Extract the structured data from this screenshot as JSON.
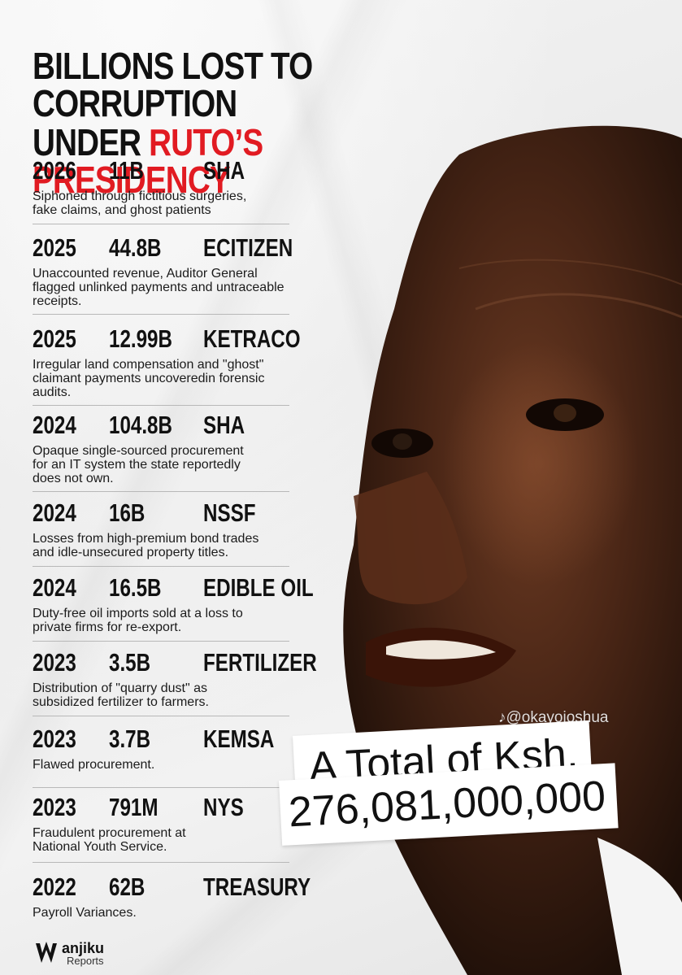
{
  "title": {
    "line1": "BILLIONS LOST TO CORRUPTION",
    "line2_prefix": "UNDER ",
    "line2_highlight": "RUTO’S PRESIDENCY"
  },
  "items": [
    {
      "year": "2026",
      "amount": "11B",
      "agency": "SHA",
      "desc1": "Siphoned through fictitious surgeries,",
      "desc2": "fake claims, and ghost patients",
      "desc3": ""
    },
    {
      "year": "2025",
      "amount": "44.8B",
      "agency": "ECITIZEN",
      "desc1": "Unaccounted revenue, Auditor General",
      "desc2": "flagged unlinked payments and untraceable",
      "desc3": "receipts."
    },
    {
      "year": "2025",
      "amount": "12.99B",
      "agency": "KETRACO",
      "desc1": "Irregular land compensation and \"ghost\"",
      "desc2": "claimant payments uncoveredin forensic",
      "desc3": "audits."
    },
    {
      "year": "2024",
      "amount": "104.8B",
      "agency": "SHA",
      "desc1": "Opaque single-sourced procurement",
      "desc2": "for an IT system the state reportedly",
      "desc3": "does not own."
    },
    {
      "year": "2024",
      "amount": "16B",
      "agency": "NSSF",
      "desc1": "Losses from high-premium bond trades",
      "desc2": "and idle-unsecured property titles.",
      "desc3": ""
    },
    {
      "year": "2024",
      "amount": "16.5B",
      "agency": "EDIBLE OIL",
      "desc1": "Duty-free oil imports sold at a loss to",
      "desc2": "private firms for re-export.",
      "desc3": ""
    },
    {
      "year": "2023",
      "amount": "3.5B",
      "agency": "FERTILIZER",
      "desc1": "Distribution of \"quarry dust\" as",
      "desc2": "subsidized fertilizer to farmers.",
      "desc3": ""
    },
    {
      "year": "2023",
      "amount": "3.7B",
      "agency": "KEMSA",
      "desc1": "Flawed procurement.",
      "desc2": "",
      "desc3": ""
    },
    {
      "year": "2023",
      "amount": "791M",
      "agency": "NYS",
      "desc1": "Fraudulent procurement at",
      "desc2": "National Youth Service.",
      "desc3": ""
    },
    {
      "year": "2022",
      "amount": "62B",
      "agency": "TREASURY",
      "desc1": "Payroll Variances.",
      "desc2": "",
      "desc3": ""
    }
  ],
  "total": {
    "line1": "A Total of Ksh.",
    "line2": "276,081,000,000"
  },
  "watermark": "♪@okayojoshua",
  "logo": {
    "word1": "anjiku",
    "word2": "Reports"
  },
  "colors": {
    "accent": "#e11b22",
    "text": "#111111"
  }
}
